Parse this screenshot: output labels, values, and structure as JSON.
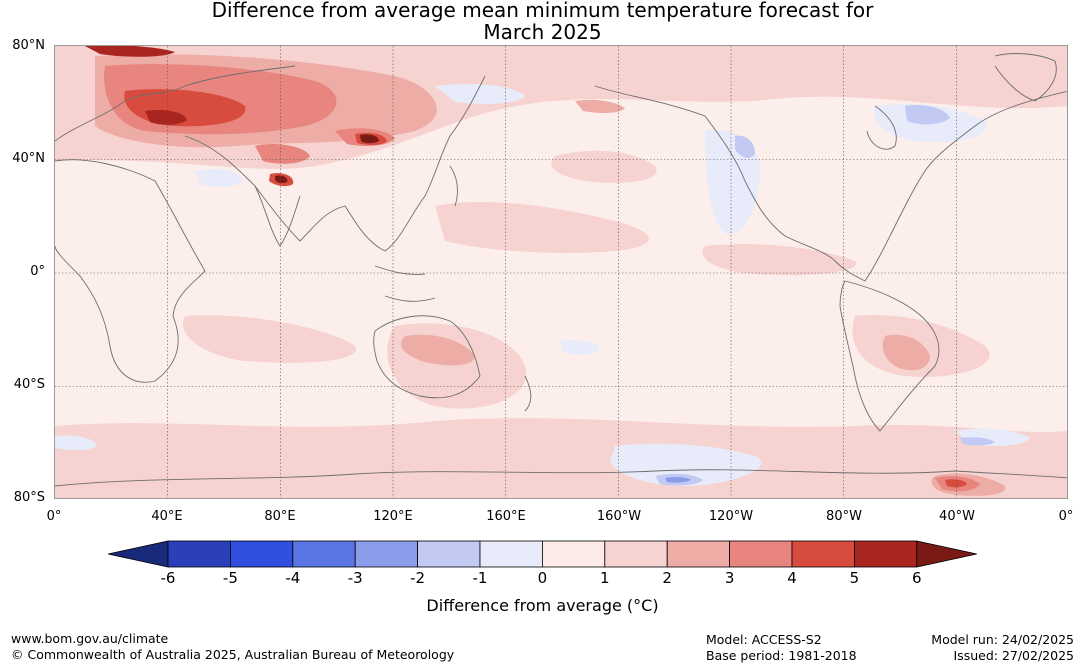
{
  "title": {
    "line1": "Difference from average mean minimum temperature forecast for",
    "line2": "March 2025"
  },
  "map": {
    "lat_labels": [
      "80°N",
      "40°N",
      "0°",
      "40°S",
      "80°S"
    ],
    "lon_labels": [
      "0°",
      "40°E",
      "80°E",
      "120°E",
      "160°E",
      "160°W",
      "120°W",
      "80°W",
      "40°W",
      "0°"
    ]
  },
  "colorbar": {
    "label": "Difference from average (°C)",
    "ticks": [
      "-6",
      "-5",
      "-4",
      "-3",
      "-2",
      "-1",
      "0",
      "1",
      "2",
      "3",
      "4",
      "5",
      "6"
    ],
    "colors": [
      "#1a2a7a",
      "#2b40b8",
      "#3150e0",
      "#5a76e4",
      "#8a9cea",
      "#c2c9f2",
      "#e8ebfa",
      "#fcebe8",
      "#f6d3d0",
      "#eeaca7",
      "#e8857e",
      "#d84c40",
      "#a8261f",
      "#7a1a14"
    ]
  },
  "footer": {
    "url": "www.bom.gov.au/climate",
    "copyright": "© Commonwealth of Australia 2025, Australian Bureau of Meteorology",
    "model": "Model: ACCESS-S2",
    "base_period": "Base period: 1981-2018",
    "model_run": "Model run: 24/02/2025",
    "issued": "Issued: 27/02/2025"
  }
}
